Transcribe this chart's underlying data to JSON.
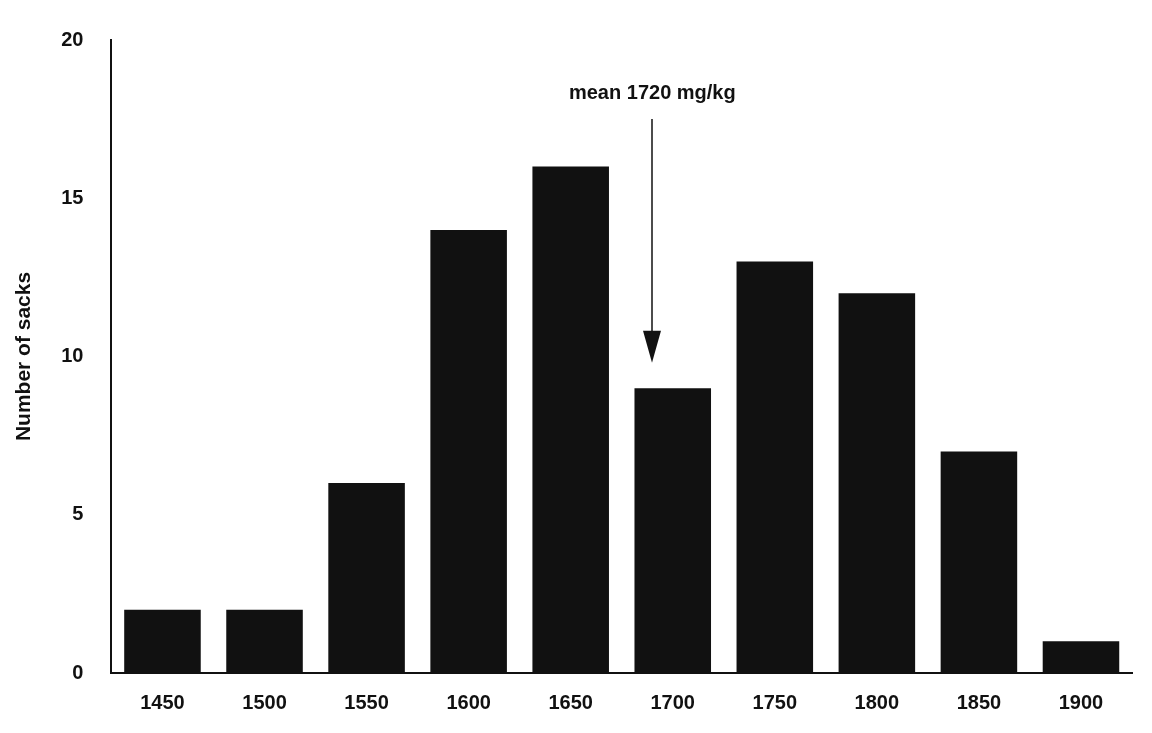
{
  "chart_data": {
    "type": "bar",
    "ylabel": "Number of sacks",
    "categories": [
      "1450",
      "1500",
      "1550",
      "1600",
      "1650",
      "1700",
      "1750",
      "1800",
      "1850",
      "1900"
    ],
    "values": [
      2,
      2,
      6,
      14,
      16,
      9,
      13,
      12,
      7,
      1
    ],
    "color": "#111111",
    "ylim": [
      0,
      20
    ],
    "yticks": [
      0,
      5,
      10,
      15,
      20
    ],
    "grid": false,
    "legend": false,
    "annotations": [
      "mean 1720 mg/kg"
    ]
  }
}
